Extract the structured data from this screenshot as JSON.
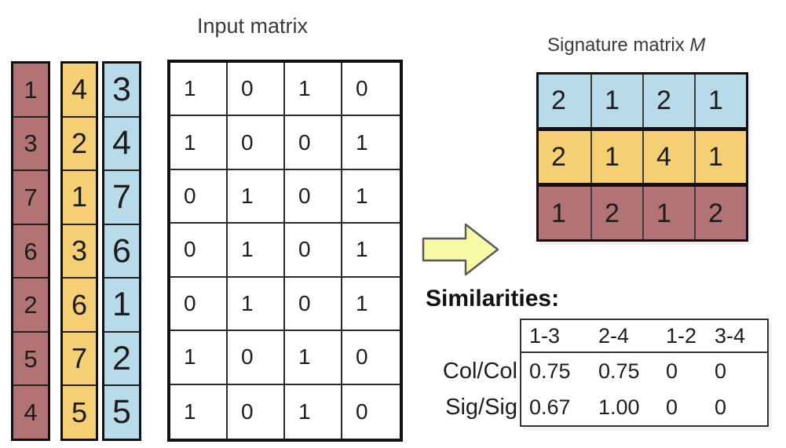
{
  "titles": {
    "input_matrix": "Input matrix",
    "signature_matrix_prefix": "Signature matrix ",
    "signature_matrix_m": "M",
    "similarities_heading": "Similarities:"
  },
  "colors": {
    "red": "#b17373",
    "yellow": "#f6ce73",
    "blue": "#b7dbe8",
    "arrow_fill": "#f8f9a5",
    "arrow_stroke": "#5a5a5a"
  },
  "permutations": [
    {
      "name": "red",
      "values": [
        1,
        3,
        7,
        6,
        2,
        5,
        4
      ]
    },
    {
      "name": "yellow",
      "values": [
        4,
        2,
        1,
        3,
        6,
        7,
        5
      ]
    },
    {
      "name": "blue",
      "values": [
        3,
        4,
        7,
        6,
        1,
        2,
        5
      ]
    }
  ],
  "input_matrix": {
    "rows": [
      [
        1,
        0,
        1,
        0
      ],
      [
        1,
        0,
        0,
        1
      ],
      [
        0,
        1,
        0,
        1
      ],
      [
        0,
        1,
        0,
        1
      ],
      [
        0,
        1,
        0,
        1
      ],
      [
        1,
        0,
        1,
        0
      ],
      [
        1,
        0,
        1,
        0
      ]
    ]
  },
  "signature_matrix": {
    "rows": [
      {
        "color": "blue",
        "values": [
          2,
          1,
          2,
          1
        ]
      },
      {
        "color": "yellow",
        "values": [
          2,
          1,
          4,
          1
        ]
      },
      {
        "color": "red",
        "values": [
          1,
          2,
          1,
          2
        ]
      }
    ]
  },
  "similarities": {
    "column_headers": [
      "1-3",
      "2-4",
      "1-2",
      "3-4"
    ],
    "rows": [
      {
        "label": "Col/Col",
        "values": [
          "0.75",
          "0.75",
          "0",
          "0"
        ]
      },
      {
        "label": "Sig/Sig",
        "values": [
          "0.67",
          "1.00",
          "0",
          "0"
        ]
      }
    ]
  },
  "arrow_icon": "right-block-arrow"
}
